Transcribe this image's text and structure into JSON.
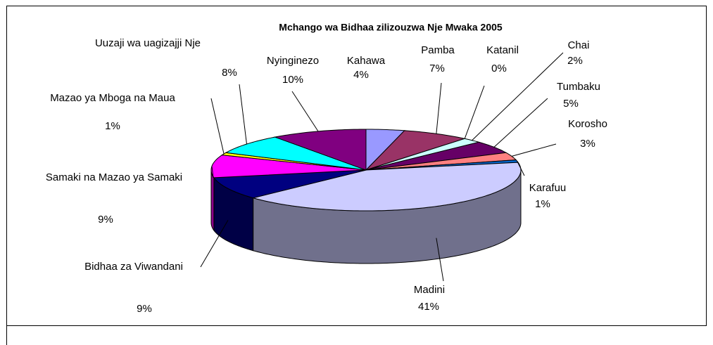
{
  "chart_data": {
    "type": "pie",
    "title": "Mchango wa Bidhaa zilizouzwa Nje Mwaka  2005",
    "categories": [
      "Kahawa",
      "Pamba",
      "Katanil",
      "Chai",
      "Tumbaku",
      "Korosho",
      "Karafuu",
      "Madini",
      "Bidhaa za Viwandani",
      "Samaki na Mazao ya Samaki",
      "Mazao ya Mboga na Maua",
      "Uuzaji wa uagizajji Nje",
      "Nyinginezo"
    ],
    "values": [
      4,
      7,
      0,
      2,
      5,
      3,
      1,
      41,
      9,
      9,
      1,
      8,
      10
    ],
    "value_labels": [
      "4%",
      "7%",
      "0%",
      "2%",
      "5%",
      "3%",
      "1%",
      "41%",
      "9%",
      "9%",
      "1%",
      "8%",
      "10%"
    ],
    "colors": [
      "#9999ff",
      "#993366",
      "#ffffcc",
      "#ccffff",
      "#660066",
      "#ff8080",
      "#0066cc",
      "#ccccff",
      "#000080",
      "#ff00ff",
      "#ffff00",
      "#00ffff",
      "#800080"
    ]
  }
}
